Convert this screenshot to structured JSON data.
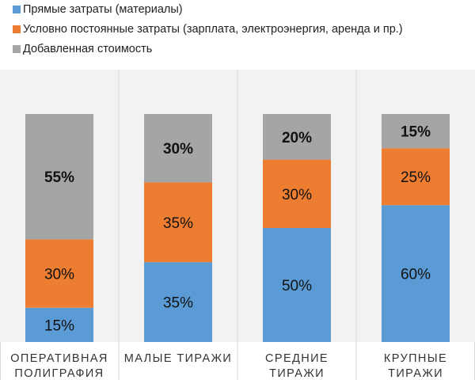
{
  "chart_data": {
    "type": "bar",
    "stacked": true,
    "categories": [
      [
        "ОПЕРАТИВНАЯ",
        "ПОЛИГРАФИЯ"
      ],
      [
        "МАЛЫЕ ТИРАЖИ"
      ],
      [
        "СРЕДНИЕ",
        "ТИРАЖИ"
      ],
      [
        "КРУПНЫЕ",
        "ТИРАЖИ"
      ]
    ],
    "series": [
      {
        "name": "Прямые затраты (материалы)",
        "color": "#5b9bd5",
        "values": [
          15,
          35,
          50,
          60
        ],
        "labels": [
          "15%",
          "35%",
          "50%",
          "60%"
        ],
        "bold": [
          false,
          false,
          false,
          false
        ]
      },
      {
        "name": "Условно постоянные затраты (зарплата, электроэнергия, аренда и пр.)",
        "color": "#ed7d31",
        "values": [
          30,
          35,
          30,
          25
        ],
        "labels": [
          "30%",
          "35%",
          "30%",
          "25%"
        ],
        "bold": [
          false,
          false,
          false,
          false
        ]
      },
      {
        "name": "Добавленная стоимость",
        "color": "#a5a5a5",
        "values": [
          55,
          30,
          20,
          15
        ],
        "labels": [
          "55%",
          "30%",
          "20%",
          "15%"
        ],
        "bold": [
          true,
          true,
          true,
          true
        ]
      }
    ],
    "ylim": [
      0,
      100
    ],
    "legend_position": "top-left",
    "grid": false
  }
}
